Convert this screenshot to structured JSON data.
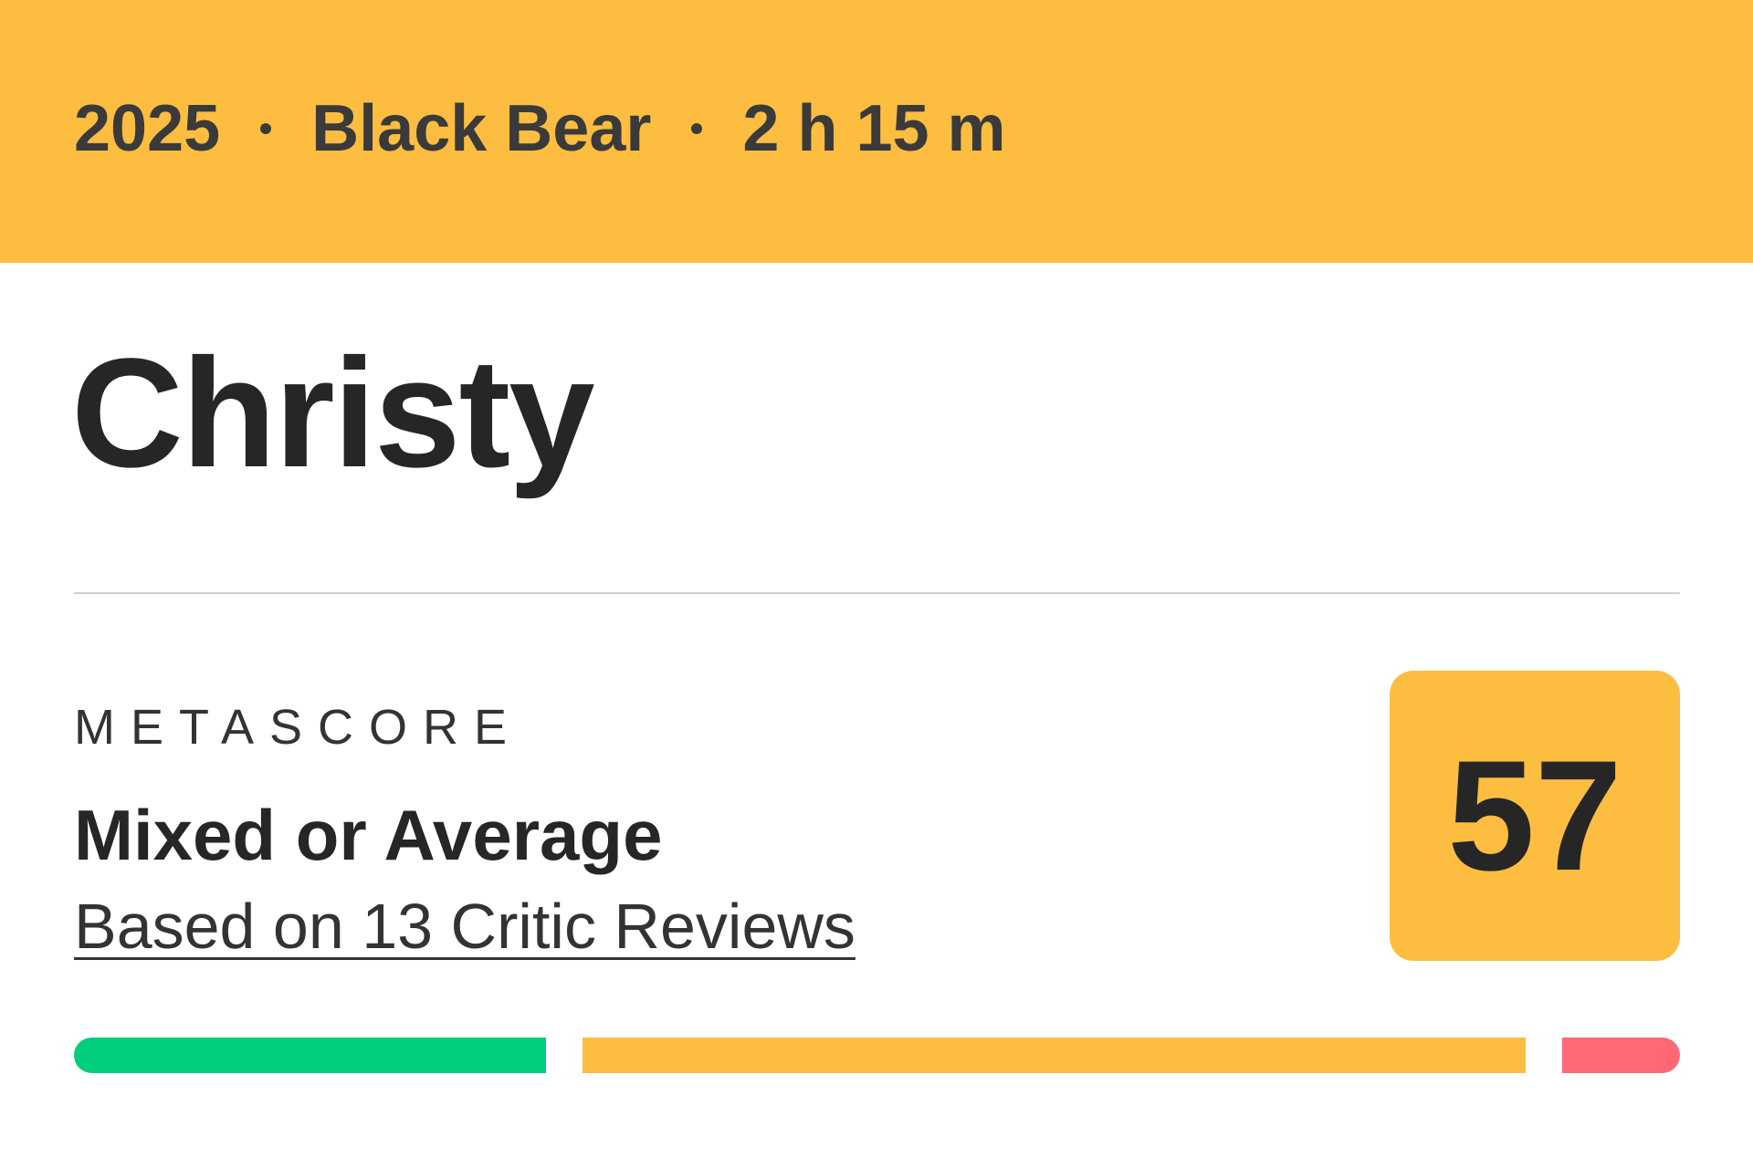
{
  "header": {
    "year": "2025",
    "distributor": "Black Bear",
    "runtime": "2 h 15 m",
    "background_color": "#FDBD40"
  },
  "title": "Christy",
  "metascore": {
    "label": "METASCORE",
    "verdict": "Mixed or Average",
    "reviews_link": "Based on 13 Critic Reviews",
    "score": "57",
    "score_color": "#FDBD40"
  },
  "distribution": [
    {
      "kind": "positive",
      "count": 4,
      "color": "#00CE7A"
    },
    {
      "kind": "mixed",
      "count": 8,
      "color": "#FDBD40"
    },
    {
      "kind": "negative",
      "count": 1,
      "color": "#FF6874"
    }
  ]
}
